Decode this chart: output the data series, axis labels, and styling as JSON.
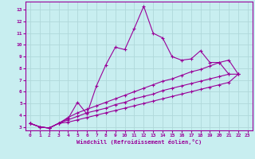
{
  "xlabel": "Windchill (Refroidissement éolien,°C)",
  "background_color": "#c8eef0",
  "grid_color": "#b0d8da",
  "line_color": "#990099",
  "xlim": [
    -0.5,
    23.5
  ],
  "ylim": [
    2.7,
    13.7
  ],
  "xticks": [
    0,
    1,
    2,
    3,
    4,
    5,
    6,
    7,
    8,
    9,
    10,
    11,
    12,
    13,
    14,
    15,
    16,
    17,
    18,
    19,
    20,
    21,
    22,
    23
  ],
  "yticks": [
    3,
    4,
    5,
    6,
    7,
    8,
    9,
    10,
    11,
    12,
    13
  ],
  "series": [
    {
      "x": [
        0,
        1,
        2,
        3,
        4,
        5,
        6,
        7,
        8,
        9,
        10,
        11,
        12,
        13,
        14,
        15,
        16,
        17,
        18,
        19,
        20,
        21
      ],
      "y": [
        3.3,
        3.0,
        2.9,
        3.3,
        3.7,
        5.1,
        4.1,
        6.5,
        8.3,
        9.8,
        9.6,
        11.4,
        13.3,
        11.0,
        10.6,
        9.0,
        8.7,
        8.8,
        9.5,
        8.5,
        8.5,
        7.5
      ]
    },
    {
      "x": [
        0,
        1,
        2,
        3,
        4,
        5,
        6,
        7,
        8,
        9,
        10,
        11,
        12,
        13,
        14,
        15,
        16,
        17,
        18,
        19,
        20,
        21,
        22
      ],
      "y": [
        3.3,
        3.0,
        2.9,
        3.3,
        3.8,
        4.2,
        4.5,
        4.8,
        5.1,
        5.4,
        5.7,
        6.0,
        6.3,
        6.6,
        6.9,
        7.1,
        7.4,
        7.7,
        7.9,
        8.2,
        8.5,
        8.7,
        7.5
      ]
    },
    {
      "x": [
        0,
        1,
        2,
        3,
        4,
        5,
        6,
        7,
        8,
        9,
        10,
        11,
        12,
        13,
        14,
        15,
        16,
        17,
        18,
        19,
        20,
        21,
        22
      ],
      "y": [
        3.3,
        3.0,
        2.9,
        3.3,
        3.6,
        3.9,
        4.2,
        4.4,
        4.6,
        4.9,
        5.1,
        5.4,
        5.6,
        5.8,
        6.1,
        6.3,
        6.5,
        6.7,
        6.9,
        7.1,
        7.3,
        7.5,
        7.5
      ]
    },
    {
      "x": [
        0,
        1,
        2,
        3,
        4,
        5,
        6,
        7,
        8,
        9,
        10,
        11,
        12,
        13,
        14,
        15,
        16,
        17,
        18,
        19,
        20,
        21,
        22
      ],
      "y": [
        3.3,
        3.0,
        2.9,
        3.3,
        3.4,
        3.6,
        3.8,
        4.0,
        4.2,
        4.4,
        4.6,
        4.8,
        5.0,
        5.2,
        5.4,
        5.6,
        5.8,
        6.0,
        6.2,
        6.4,
        6.6,
        6.8,
        7.5
      ]
    }
  ]
}
